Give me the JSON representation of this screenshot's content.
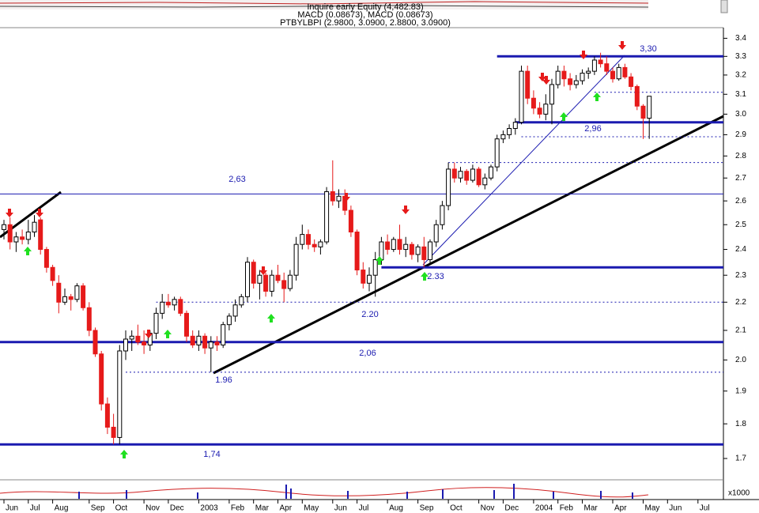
{
  "chart_data": {
    "type": "candlestick",
    "title": "Inquire early Equity (4,482.83)",
    "subtitle": "MACD (0.08673), MACD (0.08673)",
    "series_title": "PTBYLBPI (2.9800, 3.0900, 2.8800, 3.0900)",
    "volume_unit": "x1000",
    "log_scale": true,
    "up_color": "#ffffff",
    "down_color": "#e61a1a",
    "ylim": [
      1.62,
      3.46
    ],
    "yticks": [
      1.7,
      1.8,
      1.9,
      {
        "value": 2,
        "label": "2.0"
      },
      2.1,
      2.2,
      2.3,
      2.4,
      2.5,
      2.6,
      2.7,
      2.8,
      2.9,
      {
        "value": 3,
        "label": "3.0"
      },
      3.1,
      3.2,
      3.3,
      3.4
    ],
    "categories": [
      "Jun",
      null,
      null,
      null,
      "Jul",
      null,
      null,
      null,
      "Aug",
      null,
      null,
      null,
      null,
      null,
      "Sep",
      null,
      null,
      null,
      "Oct",
      null,
      null,
      null,
      null,
      "Nov",
      null,
      null,
      null,
      "Dec",
      null,
      null,
      null,
      null,
      "2003",
      null,
      null,
      null,
      null,
      "Feb",
      null,
      null,
      null,
      "Mar",
      null,
      null,
      null,
      "Apr",
      null,
      null,
      null,
      "May",
      null,
      null,
      null,
      null,
      "Jun",
      null,
      null,
      null,
      "Jul",
      null,
      null,
      null,
      null,
      "Aug",
      null,
      null,
      null,
      null,
      "Sep",
      null,
      null,
      null,
      null,
      "Oct",
      null,
      null,
      null,
      null,
      "Nov",
      null,
      null,
      null,
      "Dec",
      null,
      null,
      null,
      null,
      "2004",
      null,
      null,
      null,
      "Feb",
      null,
      null,
      null,
      "Mar",
      null,
      null,
      null,
      null,
      "Apr",
      null,
      null,
      null,
      null,
      "May",
      null,
      null,
      null,
      "Jun",
      null,
      null,
      null,
      null,
      "Jul",
      null,
      null,
      null
    ],
    "open": [
      2.48,
      2.5,
      2.43,
      2.45,
      2.44,
      2.47,
      2.52,
      2.4,
      2.33,
      2.27,
      2.2,
      2.22,
      2.21,
      2.26,
      2.18,
      2.1,
      2.02,
      1.86,
      1.79,
      1.76,
      2.03,
      2.07,
      2.08,
      2.06,
      2.05,
      2.09,
      2.16,
      2.2,
      2.19,
      2.21,
      2.16,
      2.08,
      2.05,
      2.08,
      2.04,
      2.06,
      2.05,
      2.12,
      2.15,
      2.19,
      2.22,
      2.35,
      2.27,
      2.3,
      2.24,
      2.3,
      2.28,
      2.25,
      2.3,
      2.42,
      2.46,
      2.42,
      2.41,
      2.43,
      2.64,
      2.6,
      2.62,
      2.56,
      2.47,
      2.32,
      2.27,
      2.3,
      2.36,
      2.43,
      2.4,
      2.44,
      2.4,
      2.42,
      2.38,
      2.41,
      2.36,
      2.43,
      2.5,
      2.58,
      2.74,
      2.7,
      2.73,
      2.69,
      2.74,
      2.67,
      2.7,
      2.75,
      2.88,
      2.9,
      2.93,
      2.96,
      3.22,
      3.08,
      3.03,
      3.0,
      3.05,
      3.15,
      3.22,
      3.18,
      3.15,
      3.17,
      3.21,
      3.22,
      3.28,
      3.26,
      3.22,
      3.18,
      3.24,
      3.19,
      3.14,
      3.04,
      2.98,
      null,
      null,
      null,
      null,
      null,
      null,
      null,
      null,
      null,
      null,
      null
    ],
    "high": [
      2.52,
      2.53,
      2.47,
      2.48,
      2.52,
      2.54,
      2.53,
      2.41,
      2.34,
      2.3,
      2.25,
      2.23,
      2.27,
      2.27,
      2.2,
      2.11,
      2.03,
      1.88,
      1.83,
      2.05,
      2.1,
      2.1,
      2.12,
      2.1,
      2.1,
      2.18,
      2.23,
      2.23,
      2.22,
      2.22,
      2.17,
      2.1,
      2.1,
      2.09,
      2.08,
      2.08,
      2.13,
      2.16,
      2.21,
      2.23,
      2.37,
      2.36,
      2.32,
      2.31,
      2.32,
      2.34,
      2.31,
      2.32,
      2.45,
      2.5,
      2.48,
      2.44,
      2.44,
      2.66,
      2.78,
      2.65,
      2.65,
      2.58,
      2.48,
      2.35,
      2.33,
      2.39,
      2.45,
      2.46,
      2.45,
      2.5,
      2.45,
      2.43,
      2.42,
      2.45,
      2.44,
      2.52,
      2.6,
      2.77,
      2.77,
      2.75,
      2.74,
      2.76,
      2.75,
      2.72,
      2.76,
      2.9,
      2.92,
      2.95,
      2.98,
      3.25,
      3.25,
      3.12,
      3.06,
      3.1,
      3.18,
      3.25,
      3.25,
      3.21,
      3.2,
      3.23,
      3.24,
      3.3,
      3.32,
      3.3,
      3.24,
      3.26,
      3.26,
      3.21,
      3.15,
      3.05,
      3.09,
      null,
      null,
      null,
      null,
      null,
      null,
      null,
      null,
      null,
      null,
      null
    ],
    "low": [
      2.44,
      2.4,
      2.39,
      2.42,
      2.42,
      2.45,
      2.38,
      2.31,
      2.26,
      2.16,
      2.19,
      2.17,
      2.2,
      2.17,
      2.08,
      2.01,
      1.84,
      1.77,
      1.74,
      1.74,
      2.0,
      2.03,
      2.05,
      2.02,
      2.03,
      2.07,
      2.14,
      2.18,
      2.17,
      2.15,
      2.06,
      2.04,
      2.03,
      2.02,
      1.96,
      2.03,
      2.04,
      2.1,
      2.13,
      2.18,
      2.2,
      2.25,
      2.21,
      2.22,
      2.22,
      2.27,
      2.2,
      2.24,
      2.28,
      2.4,
      2.4,
      2.39,
      2.38,
      2.42,
      2.58,
      2.57,
      2.54,
      2.45,
      2.3,
      2.25,
      2.24,
      2.22,
      2.34,
      2.38,
      2.39,
      2.38,
      2.37,
      2.36,
      2.35,
      2.33,
      2.34,
      2.41,
      2.48,
      2.56,
      2.68,
      2.68,
      2.67,
      2.68,
      2.66,
      2.65,
      2.69,
      2.73,
      2.86,
      2.88,
      2.9,
      2.95,
      3.05,
      3.0,
      2.98,
      2.97,
      2.95,
      3.13,
      3.14,
      3.12,
      3.13,
      3.15,
      3.18,
      3.2,
      3.24,
      3.2,
      3.16,
      3.17,
      3.18,
      3.12,
      3.02,
      2.88,
      2.88,
      null,
      null,
      null,
      null,
      null,
      null,
      null,
      null,
      null,
      null,
      null
    ],
    "close": [
      2.5,
      2.43,
      2.45,
      2.44,
      2.47,
      2.51,
      2.4,
      2.33,
      2.28,
      2.2,
      2.22,
      2.21,
      2.26,
      2.18,
      2.1,
      2.02,
      1.86,
      1.79,
      1.76,
      2.03,
      2.07,
      2.08,
      2.06,
      2.05,
      2.09,
      2.16,
      2.2,
      2.19,
      2.21,
      2.16,
      2.08,
      2.05,
      2.08,
      2.04,
      2.06,
      2.05,
      2.12,
      2.15,
      2.19,
      2.22,
      2.35,
      2.27,
      2.3,
      2.24,
      2.3,
      2.28,
      2.25,
      2.3,
      2.42,
      2.46,
      2.42,
      2.41,
      2.43,
      2.64,
      2.6,
      2.62,
      2.56,
      2.47,
      2.32,
      2.27,
      2.3,
      2.36,
      2.43,
      2.4,
      2.44,
      2.4,
      2.42,
      2.38,
      2.41,
      2.36,
      2.43,
      2.5,
      2.58,
      2.74,
      2.7,
      2.73,
      2.69,
      2.74,
      2.67,
      2.7,
      2.75,
      2.88,
      2.9,
      2.93,
      2.96,
      3.22,
      3.08,
      3.03,
      3.0,
      3.05,
      3.15,
      3.22,
      3.18,
      3.15,
      3.17,
      3.21,
      3.22,
      3.28,
      3.26,
      3.22,
      3.18,
      3.24,
      3.19,
      3.14,
      3.04,
      2.98,
      3.09,
      null,
      null,
      null,
      null,
      null,
      null,
      null,
      null,
      null,
      null,
      null
    ],
    "levels": [
      {
        "value": 3.3,
        "label": "3,30",
        "style": "thick"
      },
      {
        "value": 2.96,
        "label": "2,96",
        "style": "thick"
      },
      {
        "value": 2.63,
        "label": "2,63",
        "style": "thin"
      },
      {
        "value": 2.33,
        "label": "2.33",
        "style": "thick"
      },
      {
        "value": 2.2,
        "label": "2.20",
        "style": "dotted"
      },
      {
        "value": 2.06,
        "label": "2,06",
        "style": "thick"
      },
      {
        "value": 1.96,
        "label": "1.96",
        "style": "dotted"
      },
      {
        "value": 1.74,
        "label": "1,74",
        "style": "thick"
      }
    ],
    "dotted_levels": [
      3.11,
      2.89,
      2.77
    ]
  }
}
